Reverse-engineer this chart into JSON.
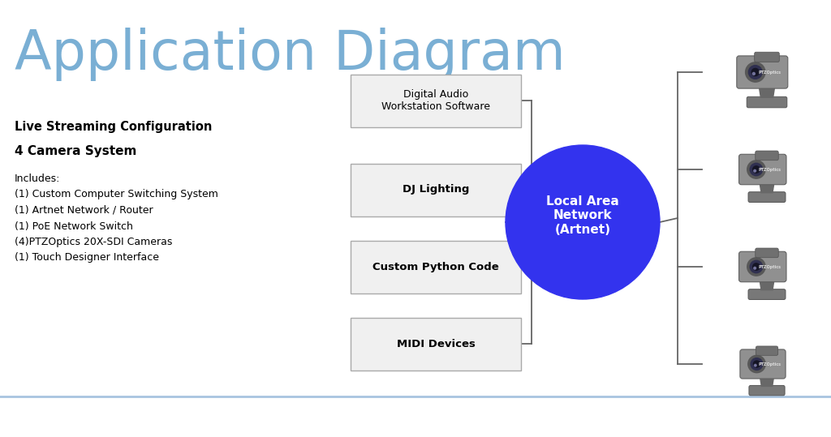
{
  "title": "Application Diagram",
  "title_color": "#7aafd4",
  "title_fontsize": 48,
  "bg_color": "#ffffff",
  "left_title1": "Live Streaming Configuration",
  "left_title2": "4 Camera System",
  "left_body": "Includes:\n(1) Custom Computer Switching System\n(1) Artnet Network / Router\n(1) PoE Network Switch\n(4)PTZOptics 20X-SDI Cameras\n(1) Touch Designer Interface",
  "boxes": [
    {
      "label": "Digital Audio\nWorkstation Software",
      "bold": false
    },
    {
      "label": "DJ Lighting",
      "bold": true
    },
    {
      "label": "Custom Python Code",
      "bold": true
    },
    {
      "label": "MIDI Devices",
      "bold": true
    }
  ],
  "circle_label": "Local Area\nNetwork\n(Artnet)",
  "circle_color": "#3333ee",
  "circle_text_color": "#ffffff",
  "box_fill": "#f0f0f0",
  "box_edge": "#aaaaaa",
  "line_color": "#666666",
  "bottom_line_color": "#a8c4e0"
}
